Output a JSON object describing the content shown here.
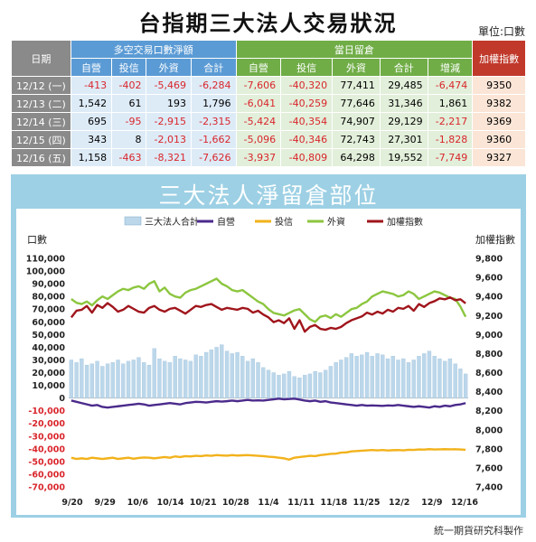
{
  "title": "台指期三大法人交易狀況",
  "unit": "單位:口數",
  "table": {
    "col_date": "日期",
    "group_oi": "多空交易口數淨額",
    "group_pos": "當日留倉",
    "col_index": "加權指數",
    "sub_oi": [
      "自營",
      "投信",
      "外資",
      "合計"
    ],
    "sub_pos": [
      "自營",
      "投信",
      "外資",
      "合計",
      "增減"
    ],
    "rows": [
      {
        "date": "12/12 (一)",
        "oi": [
          "-413",
          "-402",
          "-5,469",
          "-6,284"
        ],
        "pos": [
          "-7,606",
          "-40,320",
          "77,411",
          "29,485",
          "-6,474"
        ],
        "index": "9350"
      },
      {
        "date": "12/13 (二)",
        "oi": [
          "1,542",
          "61",
          "193",
          "1,796"
        ],
        "pos": [
          "-6,041",
          "-40,259",
          "77,646",
          "31,346",
          "1,861"
        ],
        "index": "9382"
      },
      {
        "date": "12/14 (三)",
        "oi": [
          "695",
          "-95",
          "-2,915",
          "-2,315"
        ],
        "pos": [
          "-5,424",
          "-40,354",
          "74,907",
          "29,129",
          "-2,217"
        ],
        "index": "9369"
      },
      {
        "date": "12/15 (四)",
        "oi": [
          "343",
          "8",
          "-2,013",
          "-1,662"
        ],
        "pos": [
          "-5,096",
          "-40,346",
          "72,743",
          "27,301",
          "-1,828"
        ],
        "index": "9360"
      },
      {
        "date": "12/16 (五)",
        "oi": [
          "1,158",
          "-463",
          "-8,321",
          "-7,626"
        ],
        "pos": [
          "-3,937",
          "-40,809",
          "64,298",
          "19,552",
          "-7,749"
        ],
        "index": "9327"
      }
    ]
  },
  "footer": "統一期貨研究科製作",
  "chart_data": {
    "type": "bar",
    "title": "三大法人淨留倉部位",
    "ylabel": "口數",
    "y2label": "加權指數",
    "ylim": [
      -70000,
      110000
    ],
    "y2lim": [
      7400,
      9800
    ],
    "yticks": [
      "110,000",
      "100,000",
      "90,000",
      "80,000",
      "70,000",
      "60,000",
      "50,000",
      "40,000",
      "30,000",
      "20,000",
      "10,000",
      "0",
      "-10,000",
      "-20,000",
      "-30,000",
      "-40,000",
      "-50,000",
      "-60,000",
      "-70,000"
    ],
    "y2ticks": [
      "9,800",
      "9,600",
      "9,400",
      "9,200",
      "9,000",
      "8,800",
      "8,600",
      "8,400",
      "8,200",
      "8,000",
      "7,800",
      "7,600",
      "7,400"
    ],
    "xticks": [
      "9/20",
      "9/29",
      "10/6",
      "10/14",
      "10/21",
      "10/28",
      "11/4",
      "11/11",
      "11/18",
      "11/25",
      "12/2",
      "12/9",
      "12/16"
    ],
    "legend": [
      "三大法人合計",
      "自營",
      "投信",
      "外資",
      "加權指數"
    ],
    "colors": {
      "total": "#bcd7ea",
      "dealer": "#4b2a8c",
      "trust": "#f2b21b",
      "foreign": "#8cc63f",
      "index": "#a0151c"
    },
    "series": [
      {
        "name": "三大法人合計",
        "kind": "bar",
        "values": [
          30000,
          28000,
          31000,
          26000,
          27000,
          29000,
          25000,
          27000,
          28000,
          30000,
          27000,
          29000,
          30000,
          32000,
          28000,
          26000,
          39000,
          31000,
          29000,
          28000,
          33000,
          31000,
          30000,
          29000,
          34000,
          33000,
          36000,
          38000,
          40000,
          42000,
          37000,
          35000,
          36000,
          33000,
          29000,
          31000,
          28000,
          24000,
          22000,
          20000,
          18000,
          19000,
          21000,
          17000,
          16000,
          18000,
          19000,
          21000,
          20000,
          22000,
          25000,
          28000,
          30000,
          32000,
          35000,
          33000,
          34000,
          36000,
          33000,
          35000,
          34000,
          31000,
          33000,
          30000,
          31000,
          28000,
          30000,
          33000,
          35000,
          37000,
          33000,
          31000,
          29000,
          31000,
          27000,
          23000,
          19000
        ]
      },
      {
        "name": "自營",
        "kind": "line",
        "values": [
          -2000,
          -3000,
          -4000,
          -5000,
          -6000,
          -5500,
          -7000,
          -7500,
          -7000,
          -6500,
          -6000,
          -5500,
          -5000,
          -4500,
          -5000,
          -6000,
          -5500,
          -5000,
          -4500,
          -4000,
          -4500,
          -5000,
          -4000,
          -3500,
          -3000,
          -3200,
          -3500,
          -3000,
          -2500,
          -2800,
          -2500,
          -2000,
          -2500,
          -2000,
          -1500,
          -2000,
          -1800,
          -2000,
          -1500,
          -1000,
          -500,
          -1000,
          -800,
          -500,
          -1200,
          -2000,
          -2500,
          -2000,
          -3000,
          -2500,
          -3500,
          -4000,
          -4500,
          -5000,
          -5500,
          -6000,
          -5500,
          -6000,
          -5800,
          -6000,
          -6200,
          -5800,
          -6000,
          -5500,
          -6000,
          -6500,
          -7000,
          -6500,
          -7000,
          -7500,
          -6500,
          -7000,
          -6000,
          -6500,
          -5500,
          -5000,
          -4000
        ]
      },
      {
        "name": "投信",
        "kind": "line",
        "values": [
          -47000,
          -48000,
          -47500,
          -48000,
          -47000,
          -47500,
          -48000,
          -47500,
          -47000,
          -48000,
          -47500,
          -47000,
          -47800,
          -47200,
          -46800,
          -47000,
          -47500,
          -47000,
          -46500,
          -47000,
          -46000,
          -46500,
          -45800,
          -46000,
          -45500,
          -45800,
          -45200,
          -45500,
          -45000,
          -45200,
          -45400,
          -45000,
          -45300,
          -45100,
          -45000,
          -45200,
          -45500,
          -45800,
          -46200,
          -46500,
          -47000,
          -47500,
          -48500,
          -47000,
          -46500,
          -46000,
          -45500,
          -45800,
          -45000,
          -44500,
          -44000,
          -43800,
          -43000,
          -42800,
          -42000,
          -41800,
          -41500,
          -41200,
          -41000,
          -41200,
          -41000,
          -41300,
          -41100,
          -41000,
          -41200,
          -40800,
          -40900,
          -40500,
          -40600,
          -40300,
          -40500,
          -40400,
          -40300,
          -40400,
          -40350,
          -40500,
          -40800
        ]
      },
      {
        "name": "外資",
        "kind": "line",
        "values": [
          78000,
          75000,
          74000,
          76000,
          73000,
          77000,
          80000,
          78000,
          81000,
          84000,
          86000,
          85000,
          87000,
          88000,
          86000,
          90000,
          92000,
          84000,
          87000,
          82000,
          80000,
          79000,
          83000,
          85000,
          86000,
          88000,
          90000,
          92000,
          94000,
          90000,
          88000,
          85000,
          84000,
          85000,
          82000,
          79000,
          76000,
          74000,
          70000,
          67000,
          66000,
          65000,
          67000,
          69000,
          70000,
          66000,
          62000,
          60000,
          64000,
          65000,
          63000,
          66000,
          64000,
          67000,
          70000,
          71000,
          74000,
          76000,
          80000,
          82000,
          84000,
          83000,
          82000,
          80000,
          81000,
          84000,
          82000,
          78000,
          80000,
          82000,
          84000,
          83000,
          81000,
          79000,
          78000,
          72000,
          64000
        ]
      },
      {
        "name": "加權指數",
        "kind": "line",
        "axis": "y2",
        "values": [
          9180,
          9250,
          9260,
          9300,
          9230,
          9310,
          9280,
          9330,
          9290,
          9240,
          9260,
          9300,
          9270,
          9240,
          9230,
          9280,
          9300,
          9260,
          9240,
          9270,
          9280,
          9250,
          9220,
          9260,
          9300,
          9290,
          9310,
          9320,
          9290,
          9260,
          9280,
          9270,
          9260,
          9280,
          9270,
          9230,
          9250,
          9210,
          9180,
          9130,
          9150,
          9120,
          9170,
          9060,
          9150,
          9030,
          9080,
          9100,
          9060,
          9050,
          9070,
          9060,
          9080,
          9120,
          9150,
          9170,
          9190,
          9230,
          9210,
          9240,
          9220,
          9260,
          9240,
          9280,
          9270,
          9300,
          9250,
          9320,
          9290,
          9330,
          9350,
          9380,
          9370,
          9390,
          9360,
          9370,
          9327
        ]
      }
    ]
  }
}
